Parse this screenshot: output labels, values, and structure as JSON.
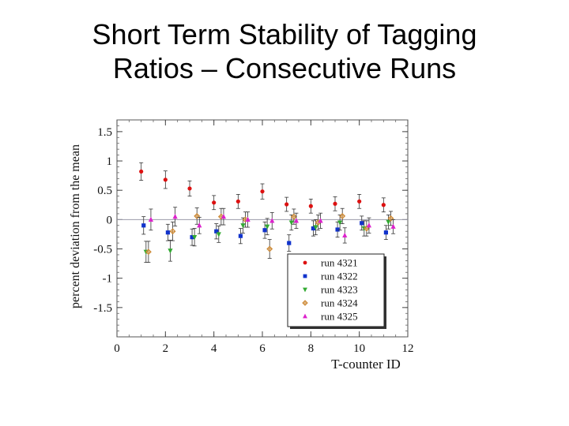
{
  "slide": {
    "title_line1": "Short Term Stability of Tagging",
    "title_line2": "Ratios – Consecutive Runs"
  },
  "chart_data": {
    "type": "scatter",
    "xlabel": "T-counter ID",
    "ylabel": "percent deviation from the mean",
    "xlim": [
      0,
      12
    ],
    "ylim": [
      -2,
      1.7
    ],
    "x_ticks": [
      "0",
      "2",
      "4",
      "6",
      "8",
      "10",
      "12"
    ],
    "y_ticks": [
      "1.5",
      "1",
      "0.5",
      "0",
      "-0.5",
      "-1",
      "-1.5"
    ],
    "x_tick_values": [
      0,
      2,
      4,
      6,
      8,
      10,
      12
    ],
    "y_tick_values": [
      1.5,
      1,
      0.5,
      0,
      -0.5,
      -1,
      -1.5
    ],
    "reference_line_y": 0,
    "legend_position": "bottom-right",
    "error_bars": true,
    "series": [
      {
        "name": "run 4321",
        "color": "#dd1111",
        "marker": "circle",
        "x": [
          1.0,
          2.0,
          3.0,
          4.0,
          5.0,
          6.0,
          7.0,
          8.0,
          9.0,
          10.0,
          11.0
        ],
        "y": [
          0.82,
          0.68,
          0.53,
          0.29,
          0.31,
          0.48,
          0.26,
          0.23,
          0.27,
          0.31,
          0.25
        ],
        "err": [
          0.15,
          0.15,
          0.13,
          0.12,
          0.12,
          0.13,
          0.12,
          0.12,
          0.12,
          0.12,
          0.12
        ]
      },
      {
        "name": "run 4322",
        "color": "#1133cc",
        "marker": "square",
        "x": [
          1.1,
          2.1,
          3.1,
          4.1,
          5.1,
          6.1,
          7.1,
          8.1,
          9.1,
          10.1,
          11.1
        ],
        "y": [
          -0.1,
          -0.22,
          -0.3,
          -0.2,
          -0.28,
          -0.18,
          -0.4,
          -0.15,
          -0.17,
          -0.06,
          -0.22
        ],
        "err": [
          0.15,
          0.14,
          0.14,
          0.13,
          0.13,
          0.14,
          0.14,
          0.13,
          0.13,
          0.12,
          0.12
        ]
      },
      {
        "name": "run 4323",
        "color": "#33aa33",
        "marker": "triangle-down",
        "x": [
          1.2,
          2.2,
          3.2,
          4.2,
          5.2,
          6.2,
          7.2,
          8.2,
          9.2,
          10.2,
          11.2
        ],
        "y": [
          -0.55,
          -0.53,
          -0.3,
          -0.25,
          -0.1,
          -0.12,
          -0.05,
          -0.13,
          -0.05,
          -0.15,
          -0.04
        ],
        "err": [
          0.18,
          0.18,
          0.15,
          0.14,
          0.13,
          0.14,
          0.13,
          0.13,
          0.13,
          0.13,
          0.12
        ]
      },
      {
        "name": "run 4324",
        "color": "#cc8833",
        "marker": "diamond-open",
        "x": [
          1.3,
          2.3,
          3.3,
          4.3,
          5.3,
          6.3,
          7.3,
          8.3,
          9.3,
          10.3,
          11.3
        ],
        "y": [
          -0.55,
          -0.2,
          0.06,
          0.05,
          0.0,
          -0.5,
          0.05,
          -0.05,
          0.06,
          -0.15,
          0.02
        ],
        "err": [
          0.18,
          0.16,
          0.14,
          0.14,
          0.13,
          0.16,
          0.13,
          0.13,
          0.13,
          0.13,
          0.12
        ]
      },
      {
        "name": "run 4325",
        "color": "#dd22cc",
        "marker": "triangle-up",
        "x": [
          1.4,
          2.4,
          3.4,
          4.4,
          5.4,
          6.4,
          7.4,
          8.4,
          9.4,
          10.4,
          11.4
        ],
        "y": [
          0.0,
          0.05,
          -0.1,
          0.05,
          0.0,
          -0.02,
          -0.02,
          -0.02,
          -0.27,
          -0.1,
          -0.12
        ],
        "err": [
          0.18,
          0.16,
          0.14,
          0.14,
          0.13,
          0.14,
          0.13,
          0.13,
          0.13,
          0.13,
          0.12
        ]
      }
    ]
  }
}
